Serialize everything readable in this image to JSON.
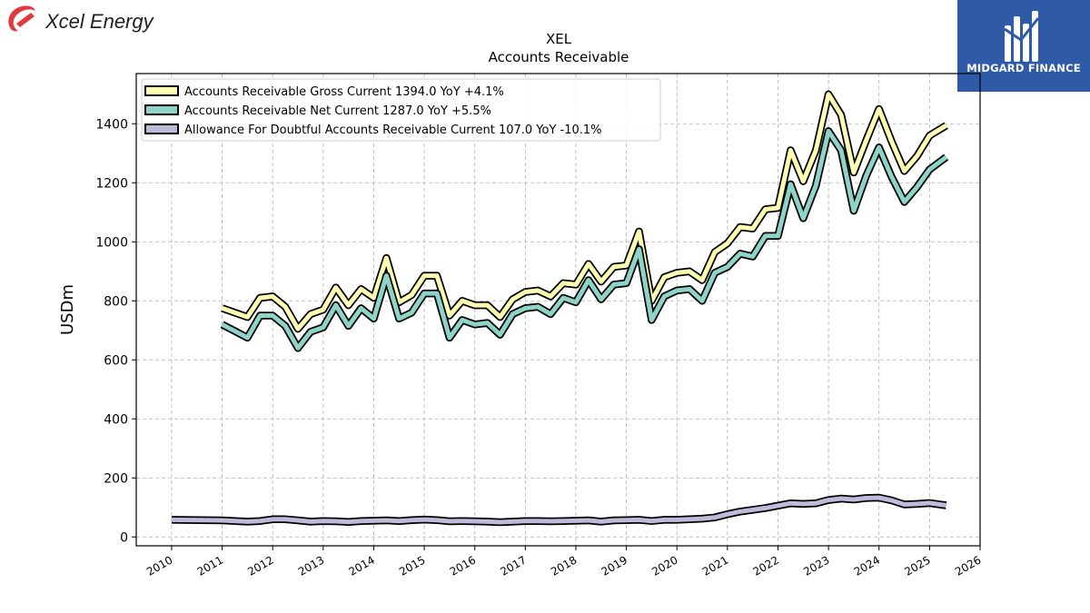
{
  "branding": {
    "company_logo_text": "Xcel Energy",
    "publisher_logo_text": "MIDGARD FINANCE",
    "logo_red": "#e03a3e",
    "publisher_blue": "#2f5aa8"
  },
  "chart_data": {
    "type": "line",
    "title": "XEL",
    "subtitle": "Accounts Receivable",
    "ylabel": "USDm",
    "xlabel": "",
    "xlim": [
      2009.3,
      2026.0
    ],
    "ylim": [
      -30,
      1570
    ],
    "yticks": [
      0,
      200,
      400,
      600,
      800,
      1000,
      1200,
      1400
    ],
    "xticks": [
      2010,
      2011,
      2012,
      2013,
      2014,
      2015,
      2016,
      2017,
      2018,
      2019,
      2020,
      2021,
      2022,
      2023,
      2024,
      2025,
      2026
    ],
    "grid": true,
    "legend_position": "top-left",
    "series": [
      {
        "name": "Accounts Receivable Gross Current  1394.0 YoY +4.1%",
        "color": "#ffffb3",
        "x": [
          2011.0,
          2011.5,
          2011.75,
          2012.0,
          2012.25,
          2012.5,
          2012.75,
          2013.0,
          2013.25,
          2013.5,
          2013.75,
          2014.0,
          2014.25,
          2014.5,
          2014.75,
          2015.0,
          2015.25,
          2015.5,
          2015.75,
          2016.0,
          2016.25,
          2016.5,
          2016.75,
          2017.0,
          2017.25,
          2017.5,
          2017.75,
          2018.0,
          2018.25,
          2018.5,
          2018.75,
          2019.0,
          2019.25,
          2019.5,
          2019.75,
          2020.0,
          2020.25,
          2020.5,
          2020.75,
          2021.0,
          2021.25,
          2021.5,
          2021.75,
          2022.0,
          2022.25,
          2022.5,
          2022.75,
          2023.0,
          2023.25,
          2023.5,
          2023.75,
          2024.0,
          2024.25,
          2024.5,
          2024.75,
          2025.0,
          2025.33
        ],
        "y": [
          775,
          745,
          810,
          815,
          780,
          705,
          755,
          770,
          845,
          785,
          840,
          810,
          945,
          795,
          820,
          885,
          885,
          750,
          800,
          785,
          785,
          745,
          805,
          830,
          835,
          815,
          860,
          855,
          925,
          865,
          915,
          920,
          1035,
          800,
          880,
          895,
          900,
          870,
          965,
          995,
          1050,
          1045,
          1110,
          1115,
          1310,
          1205,
          1310,
          1500,
          1430,
          1235,
          1345,
          1450,
          1340,
          1240,
          1290,
          1360,
          1394
        ]
      },
      {
        "name": "Accounts Receivable Net Current  1287.0 YoY +5.5%",
        "color": "#8dd3c7",
        "x": [
          2011.0,
          2011.5,
          2011.75,
          2012.0,
          2012.25,
          2012.5,
          2012.75,
          2013.0,
          2013.25,
          2013.5,
          2013.75,
          2014.0,
          2014.25,
          2014.5,
          2014.75,
          2015.0,
          2015.25,
          2015.5,
          2015.75,
          2016.0,
          2016.25,
          2016.5,
          2016.75,
          2017.0,
          2017.25,
          2017.5,
          2017.75,
          2018.0,
          2018.25,
          2018.5,
          2018.75,
          2019.0,
          2019.25,
          2019.5,
          2019.75,
          2020.0,
          2020.25,
          2020.5,
          2020.75,
          2021.0,
          2021.25,
          2021.5,
          2021.75,
          2022.0,
          2022.25,
          2022.5,
          2022.75,
          2023.0,
          2023.25,
          2023.5,
          2023.75,
          2024.0,
          2024.25,
          2024.5,
          2024.75,
          2025.0,
          2025.33
        ],
        "y": [
          720,
          675,
          750,
          750,
          715,
          640,
          695,
          710,
          785,
          715,
          775,
          740,
          885,
          740,
          760,
          825,
          825,
          675,
          735,
          720,
          725,
          685,
          755,
          775,
          780,
          755,
          810,
          795,
          870,
          805,
          855,
          860,
          975,
          735,
          815,
          835,
          840,
          800,
          895,
          915,
          960,
          950,
          1020,
          1020,
          1195,
          1080,
          1190,
          1375,
          1310,
          1105,
          1225,
          1320,
          1220,
          1135,
          1185,
          1245,
          1287
        ]
      },
      {
        "name": "Allowance For Doubtful Accounts Receivable Current  107.0 YoY -10.1%",
        "color": "#bebada",
        "x": [
          2010.0,
          2011.0,
          2011.5,
          2011.75,
          2012.0,
          2012.25,
          2012.5,
          2012.75,
          2013.0,
          2013.25,
          2013.5,
          2013.75,
          2014.0,
          2014.25,
          2014.5,
          2014.75,
          2015.0,
          2015.25,
          2015.5,
          2015.75,
          2016.0,
          2016.25,
          2016.5,
          2016.75,
          2017.0,
          2017.25,
          2017.5,
          2017.75,
          2018.0,
          2018.25,
          2018.5,
          2018.75,
          2019.0,
          2019.25,
          2019.5,
          2019.75,
          2020.0,
          2020.25,
          2020.5,
          2020.75,
          2021.0,
          2021.25,
          2021.5,
          2021.75,
          2022.0,
          2022.25,
          2022.5,
          2022.75,
          2023.0,
          2023.25,
          2023.5,
          2023.75,
          2024.0,
          2024.25,
          2024.5,
          2024.75,
          2025.0,
          2025.33
        ],
        "y": [
          58,
          56,
          52,
          54,
          60,
          60,
          56,
          52,
          54,
          53,
          51,
          54,
          55,
          56,
          54,
          57,
          59,
          57,
          53,
          54,
          53,
          52,
          50,
          52,
          54,
          54,
          53,
          54,
          55,
          56,
          52,
          56,
          57,
          58,
          54,
          58,
          58,
          60,
          62,
          66,
          77,
          86,
          92,
          98,
          106,
          114,
          112,
          114,
          125,
          130,
          127,
          132,
          133,
          124,
          110,
          112,
          115,
          107
        ]
      }
    ]
  }
}
